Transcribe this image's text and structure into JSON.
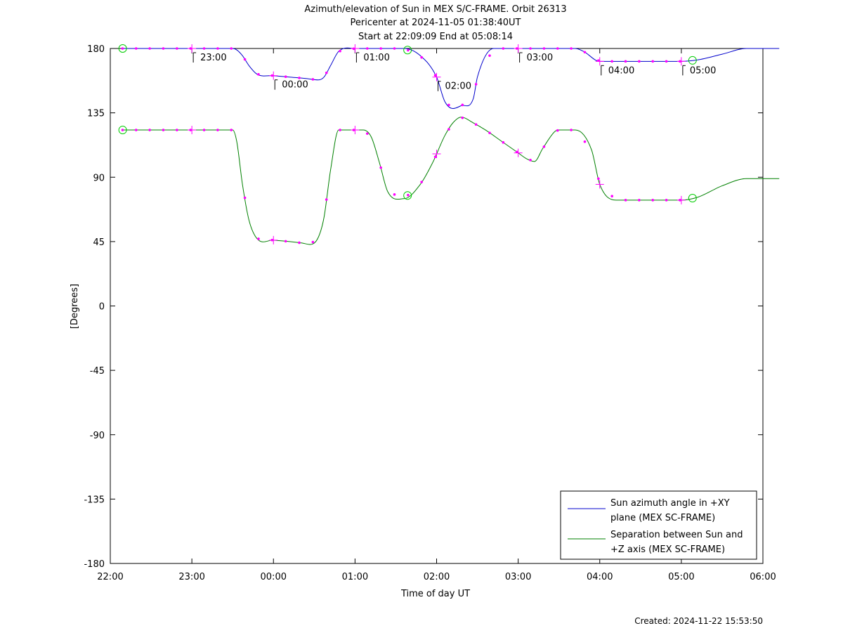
{
  "chart_data": {
    "type": "line",
    "title_lines": [
      "Azimuth/elevation of Sun in MEX S/C-FRAME.  Orbit 26313",
      "Pericenter at 2024-11-05 01:38:40UT",
      "Start at 22:09:09 End at 05:08:14"
    ],
    "xlabel": "Time of day UT",
    "ylabel": "[Degrees]",
    "xlim": [
      0,
      8
    ],
    "ylim": [
      -180,
      180
    ],
    "x_tick_labels": [
      "22:00",
      "23:00",
      "00:00",
      "01:00",
      "02:00",
      "03:00",
      "04:00",
      "05:00",
      "06:00"
    ],
    "y_ticks": [
      180,
      135,
      90,
      45,
      0,
      -45,
      -90,
      -135,
      -180
    ],
    "y_tick_labels": [
      "180",
      "135",
      "90",
      "45",
      "0",
      "-45",
      "-90",
      "-135",
      "-180"
    ],
    "legend_position": "bottom-right",
    "series": [
      {
        "name": "Sun azimuth angle in +XY plane (MEX SC-FRAME)",
        "legend_lines": [
          "Sun azimuth angle in +XY",
          "plane (MEX SC-FRAME)"
        ],
        "color": "#0000cc",
        "x": [
          0.15,
          0.5,
          1.0,
          1.5,
          1.55,
          1.62,
          1.7,
          1.8,
          2.0,
          2.2,
          2.4,
          2.55,
          2.62,
          2.7,
          2.8,
          3.0,
          3.2,
          3.5,
          3.6,
          3.8,
          4.0,
          4.1,
          4.2,
          4.3,
          4.45,
          4.5,
          4.7,
          5.0,
          5.5,
          5.7,
          5.8,
          6.0,
          6.2,
          6.5,
          6.8,
          7.0,
          7.2,
          7.5,
          7.8,
          8.0,
          8.2
        ],
        "y": [
          180,
          180,
          180,
          180,
          179,
          175,
          168,
          162,
          161,
          160,
          159,
          158,
          160,
          168,
          178,
          180,
          180,
          180,
          180,
          175,
          160,
          143,
          138,
          140,
          145,
          160,
          180,
          180,
          180,
          180,
          178,
          171,
          171,
          171,
          171,
          171,
          172,
          176,
          180,
          180,
          180
        ]
      },
      {
        "name": "Separation between Sun and +Z axis (MEX SC-FRAME)",
        "legend_lines": [
          "Separation between Sun and",
          "+Z axis (MEX SC-FRAME)"
        ],
        "color": "#008000",
        "x": [
          0.15,
          0.5,
          1.0,
          1.5,
          1.55,
          1.62,
          1.7,
          1.8,
          2.0,
          2.2,
          2.35,
          2.45,
          2.55,
          2.62,
          2.7,
          2.8,
          3.0,
          3.1,
          3.2,
          3.3,
          3.4,
          3.6,
          3.8,
          3.95,
          4.1,
          4.2,
          4.3,
          4.45,
          4.6,
          4.8,
          5.0,
          5.1,
          5.2,
          5.3,
          5.45,
          5.5,
          5.58,
          5.7,
          5.9,
          6.0,
          6.2,
          6.5,
          6.8,
          7.0,
          7.2,
          7.5,
          7.8,
          8.0,
          8.2
        ],
        "y": [
          123,
          123,
          123,
          123,
          115,
          85,
          60,
          47,
          46,
          45,
          44,
          43,
          48,
          62,
          95,
          123,
          123,
          123,
          118,
          100,
          80,
          75,
          85,
          100,
          119,
          128,
          132,
          128,
          123,
          115,
          107,
          103,
          101,
          110,
          122,
          123,
          123,
          123,
          109,
          85,
          74,
          74,
          74,
          74,
          76,
          84,
          89,
          89,
          89
        ]
      }
    ],
    "marker_color": "#ff00ff",
    "circle_marker_color": "#00cc00",
    "top_annotations": [
      "23:00",
      "00:00",
      "01:00",
      "02:00",
      "03:00",
      "04:00",
      "05:00"
    ]
  },
  "footer": {
    "created": "Created: 2024-11-22 15:53:50"
  }
}
